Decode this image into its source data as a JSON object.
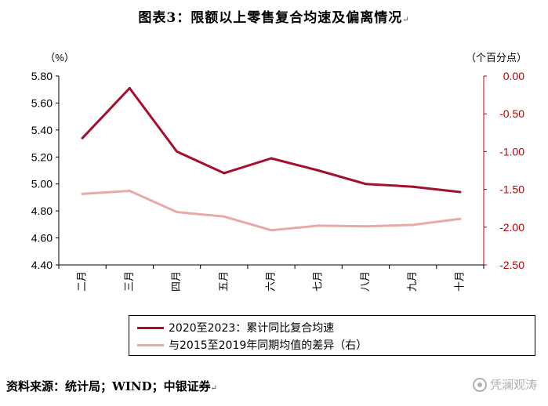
{
  "figure_title": "图表3：限额以上零售复合均速及偏离情况",
  "return_mark": "↵",
  "left_axis_unit": "（%）",
  "right_axis_unit": "（个百分点）",
  "source_note": "资料来源：统计局；WIND；中银证券",
  "watermark_text": "凭澜观涛",
  "watermark_icon": "wechat-icon",
  "chart_data": {
    "type": "line",
    "categories": [
      "二月",
      "三月",
      "四月",
      "五月",
      "六月",
      "七月",
      "八月",
      "九月",
      "十月"
    ],
    "left_axis": {
      "ylim": [
        4.4,
        5.8
      ],
      "ticks": [
        "5.80",
        "5.60",
        "5.40",
        "5.20",
        "5.00",
        "4.80",
        "4.60",
        "4.40"
      ],
      "tick_values": [
        5.8,
        5.6,
        5.4,
        5.2,
        5.0,
        4.8,
        4.6,
        4.4
      ],
      "color": "#000000"
    },
    "right_axis": {
      "ylim": [
        -2.5,
        0.0
      ],
      "ticks": [
        "0.00",
        "-0.50",
        "-1.00",
        "-1.50",
        "-2.00",
        "-2.50"
      ],
      "tick_values": [
        0.0,
        -0.5,
        -1.0,
        -1.5,
        -2.0,
        -2.5
      ],
      "color": "#c00000"
    },
    "grid": false,
    "legend_placement": "bottom",
    "series": [
      {
        "name": "2020至2023：累计同比复合均速",
        "axis": "left",
        "color": "#a50f2d",
        "values": [
          5.34,
          5.71,
          5.24,
          5.08,
          5.19,
          5.1,
          5.0,
          4.98,
          4.94
        ]
      },
      {
        "name": "与2015至2019年同期均值的差异（右）",
        "axis": "right",
        "color": "#e8a9a9",
        "values": [
          -1.56,
          -1.52,
          -1.8,
          -1.86,
          -2.04,
          -1.98,
          -1.99,
          -1.97,
          -1.89
        ]
      }
    ]
  }
}
